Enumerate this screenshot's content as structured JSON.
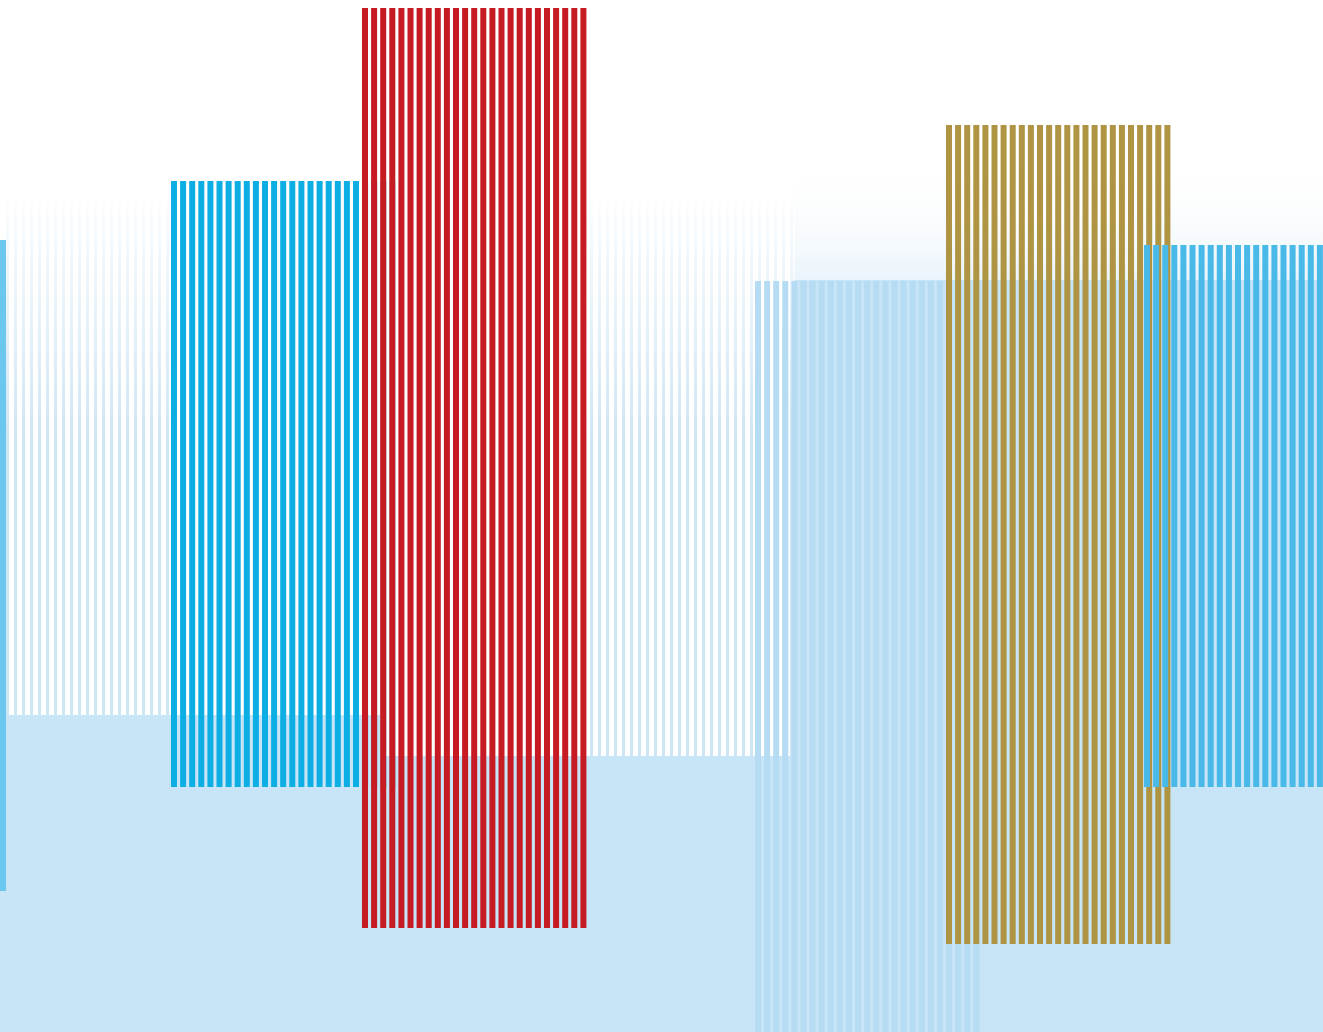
{
  "artwork": {
    "colors": {
      "background": "#ffffff",
      "pale_blue": "#c8e4f7",
      "faint_stripe_blue": "#cfe6f5",
      "left_edge_blue": "#6cc7ef",
      "cyan": "#0daee3",
      "red": "#c61b23",
      "light_blue": "#b5dcf2",
      "gold": "#ae9443",
      "sky_blue": "#49b9e8"
    }
  }
}
